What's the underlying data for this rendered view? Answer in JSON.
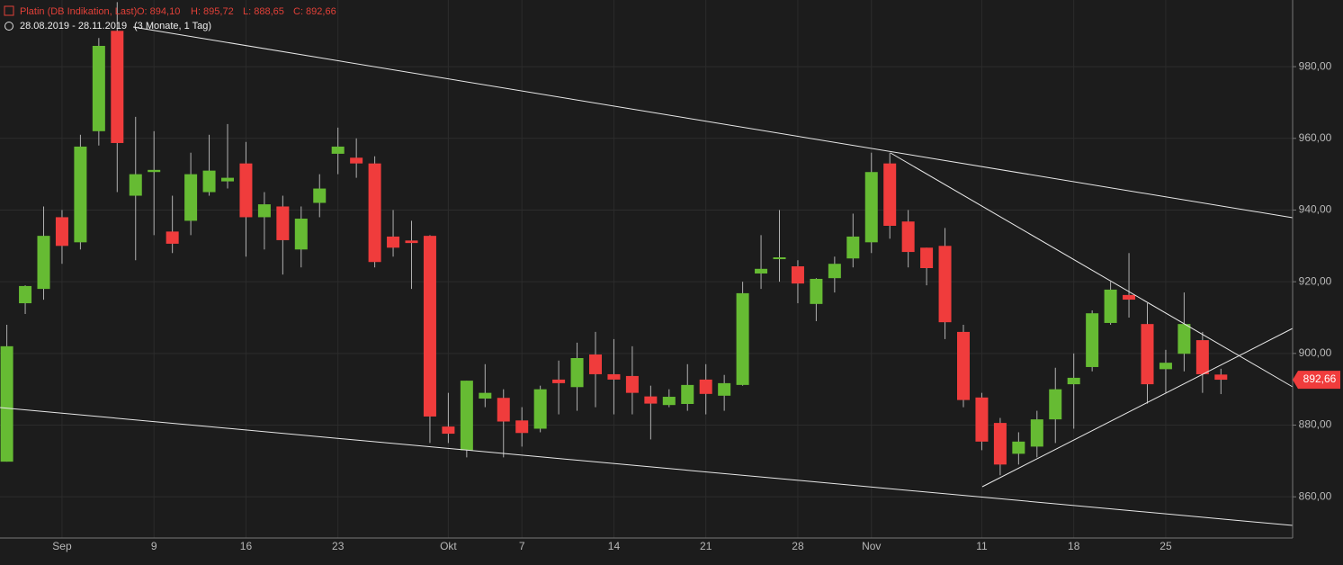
{
  "chart_data": {
    "type": "candlestick",
    "title": "Platin (DB Indikation, Last)",
    "ohlc_labels": [
      "O: 894,10",
      "H: 895,72",
      "L: 888,65",
      "C: 892,66"
    ],
    "subtitle": "28.08.2019 - 28.11.2019",
    "period": "(3 Monate, 1 Tag)",
    "price_label": "892,66",
    "up_color": "#66bb33",
    "down_color": "#f03c3c",
    "grid": true,
    "categories": [
      null,
      null,
      null,
      "Sep",
      null,
      null,
      null,
      null,
      "9",
      null,
      null,
      null,
      null,
      "16",
      null,
      null,
      null,
      null,
      "23",
      null,
      null,
      null,
      null,
      null,
      "Okt",
      null,
      null,
      null,
      "7",
      null,
      null,
      null,
      null,
      "14",
      null,
      null,
      null,
      null,
      "21",
      null,
      null,
      null,
      null,
      "28",
      null,
      null,
      null,
      "Nov",
      null,
      null,
      null,
      null,
      null,
      "11",
      null,
      null,
      null,
      null,
      "18",
      null,
      null,
      null,
      null,
      "25",
      null,
      null,
      null
    ],
    "open": [
      869.8,
      914,
      918,
      938,
      931,
      962,
      990,
      944,
      950.6,
      934,
      937,
      945,
      948,
      953,
      938,
      941,
      929,
      942,
      955.7,
      954.6,
      953,
      932.6,
      931.5,
      932.8,
      879.6,
      873,
      887.4,
      887.6,
      881.3,
      879,
      892.7,
      890.6,
      899.7,
      894.2,
      893.7,
      888,
      885.6,
      885.9,
      892.7,
      888.2,
      891.2,
      922.3,
      926.3,
      924.3,
      913.8,
      921,
      926.5,
      931,
      953,
      936.8,
      929.5,
      930,
      906,
      887.7,
      880.6,
      872,
      874,
      881.6,
      891.4,
      896.2,
      908.5,
      916.3,
      908.2,
      895.6,
      899.9,
      903.7,
      894.1
    ],
    "high": [
      908,
      919,
      941,
      940,
      961,
      988,
      998,
      966,
      962,
      944,
      956,
      961,
      964,
      959,
      945,
      944,
      941,
      950,
      963,
      960,
      955,
      940,
      937,
      933,
      889,
      892.4,
      897,
      890,
      885,
      891,
      898,
      903,
      906,
      904,
      902,
      891,
      890,
      897,
      897,
      894,
      920,
      933,
      940,
      926,
      921,
      927,
      939,
      956,
      956,
      940,
      929.5,
      935,
      908,
      889,
      882,
      878,
      884,
      896,
      900,
      912,
      920,
      928,
      914,
      901,
      917,
      906,
      895.72
    ],
    "low": [
      869.8,
      911,
      915,
      925,
      929,
      958,
      945,
      926,
      933,
      928,
      933,
      944,
      946,
      927,
      929,
      922,
      924,
      938,
      950,
      949,
      924,
      927,
      918,
      875,
      875,
      871,
      885,
      871,
      874,
      878,
      883,
      884,
      885,
      883,
      883,
      876,
      885,
      884,
      883,
      884,
      891,
      918,
      920,
      914,
      909,
      917,
      924,
      928,
      932,
      924,
      919,
      904,
      885,
      873,
      866,
      869,
      871,
      875,
      879,
      895,
      908,
      910,
      886,
      889,
      895,
      889,
      888.65
    ],
    "close": [
      902,
      918.8,
      932.8,
      930,
      957.7,
      985.8,
      958.7,
      950,
      951.2,
      930.6,
      950,
      951,
      949,
      938,
      941.6,
      931.6,
      937.6,
      946,
      957.7,
      953,
      925.5,
      929.5,
      930.8,
      882.4,
      877.6,
      892.4,
      889,
      881,
      877.8,
      890,
      891.7,
      898.7,
      894.2,
      892.7,
      889,
      886,
      887.9,
      891.2,
      888.7,
      891.7,
      916.8,
      923.6,
      926.8,
      919.5,
      920.8,
      925,
      932.6,
      950.6,
      935.6,
      928.3,
      923.8,
      908.7,
      887,
      875.4,
      869,
      875.4,
      881.6,
      890,
      893.2,
      911.2,
      917.8,
      915,
      891.4,
      897.4,
      908.2,
      894.2,
      892.66
    ],
    "ylim": [
      848.5,
      998.6
    ],
    "yticks": [
      {
        "value": 860,
        "label": "860,00"
      },
      {
        "value": 880,
        "label": "880,00"
      },
      {
        "value": 900,
        "label": "900,00"
      },
      {
        "value": 920,
        "label": "920,00"
      },
      {
        "value": 940,
        "label": "940,00"
      },
      {
        "value": 960,
        "label": "960,00"
      },
      {
        "value": 980,
        "label": "980,00"
      }
    ]
  }
}
